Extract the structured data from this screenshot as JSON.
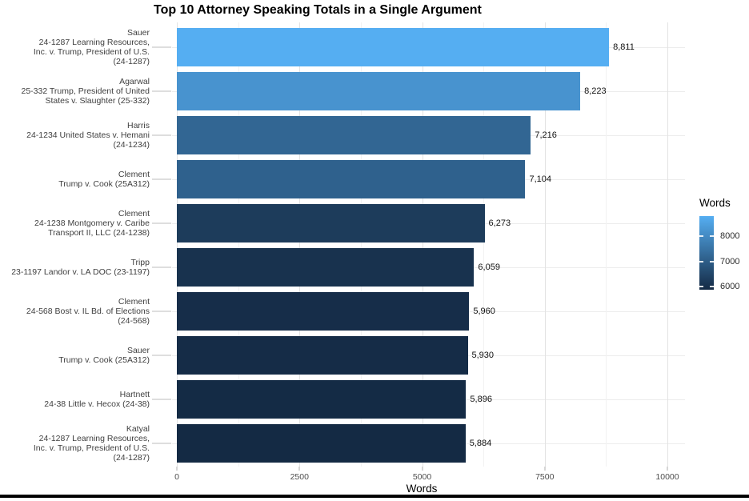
{
  "title": "Top 10 Attorney Speaking Totals in a Single Argument",
  "chart_data": {
    "type": "bar",
    "orientation": "horizontal",
    "title": "Top 10 Attorney Speaking Totals in a Single Argument",
    "xlabel": "Words",
    "ylabel": "",
    "xlim": [
      0,
      10400
    ],
    "grid": true,
    "x_major_ticks": [
      0,
      2500,
      5000,
      7500,
      10000
    ],
    "x_major_tick_labels": [
      "0",
      "2500",
      "5000",
      "7500",
      "10000"
    ],
    "x_minor_ticks": [
      1250,
      3750,
      6250,
      8750
    ],
    "categories": [
      "Sauer\n24-1287 Learning Resources,\nInc. v. Trump, President of U.S.\n(24-1287)",
      "Agarwal\n25-332 Trump, President of United\nStates v. Slaughter (25-332)",
      "Harris\n24-1234 United States v. Hemani\n(24-1234)",
      "Clement\nTrump v. Cook (25A312)",
      "Clement\n24-1238 Montgomery v. Caribe\nTransport II, LLC (24-1238)",
      "Tripp\n23-1197 Landor v. LA DOC (23-1197)",
      "Clement\n24-568 Bost v. IL Bd. of Elections\n(24-568)",
      "Sauer\nTrump v. Cook (25A312)",
      "Hartnett\n24-38 Little v. Hecox (24-38)",
      "Katyal\n24-1287 Learning Resources,\nInc. v. Trump, President of U.S.\n(24-1287)"
    ],
    "values": [
      8811,
      8223,
      7216,
      7104,
      6273,
      6059,
      5960,
      5930,
      5896,
      5884
    ],
    "value_labels": [
      "8,811",
      "8,223",
      "7,216",
      "7,104",
      "6,273",
      "6,059",
      "5,960",
      "5,930",
      "5,896",
      "5,884"
    ],
    "color_scale": {
      "low_value": 5884,
      "high_value": 8811,
      "low_color": "#142a44",
      "high_color": "#55aef2"
    },
    "legend": {
      "title": "Words",
      "position": "right",
      "type": "colorbar",
      "ticks": [
        8000,
        7000,
        6000
      ],
      "tick_labels": [
        "8000",
        "7000",
        "6000"
      ]
    }
  }
}
